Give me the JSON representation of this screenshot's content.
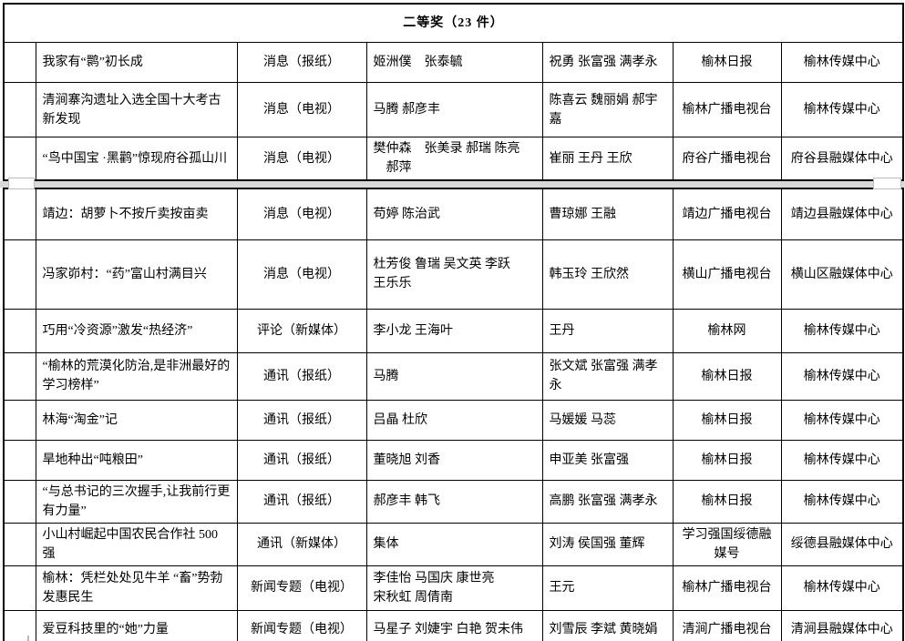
{
  "colors": {
    "border": "#000000",
    "page_break_band": "#d9d9d9",
    "background": "#ffffff"
  },
  "header": {
    "title": "二等奖（23 件）"
  },
  "tables": [
    {
      "rows": [
        {
          "index": "",
          "title": "我家有“鹮”初长成",
          "category": "消息（报纸）",
          "authors": "姬洲僕　张泰毓",
          "editors": "祝勇 张富强 满孝永",
          "organization": "榆林日报",
          "center": "榆林传媒中心"
        },
        {
          "index": "",
          "title": "清涧寨沟遗址入选全国十大考古新发现",
          "category": "消息（电视）",
          "authors": "马腾 郝彦丰",
          "editors": "陈喜云 魏丽娟 郝宇嘉",
          "organization": "榆林广播电视台",
          "center": "榆林传媒中心"
        },
        {
          "index": "",
          "title": "“鸟中国宝 ·黑鹳”惊现府谷孤山川",
          "category": "消息（电视）",
          "authors": "樊仲森　张美录 郝瑞 陈亮\n　郝萍",
          "editors": "崔丽 王丹 王欣",
          "organization": "府谷广播电视台",
          "center": "府谷县融媒体中心"
        }
      ]
    },
    {
      "rows": [
        {
          "index": "",
          "title": "靖边：胡萝卜不按斤卖按亩卖",
          "category": "消息（电视）",
          "authors": "苟婷 陈治武",
          "editors": "曹琼娜 王融",
          "organization": "靖边广播电视台",
          "center": "靖边县融媒体中心"
        },
        {
          "index": "",
          "title": "冯家峁村：“药”富山村满目兴",
          "category": "消息（电视）",
          "authors": "杜芳俊 鲁瑞 吴文英 李跃\n王乐乐",
          "editors": "韩玉玲 王欣然",
          "organization": "横山广播电视台",
          "center": "横山区融媒体中心"
        },
        {
          "index": "",
          "title": "巧用“冷资源”激发“热经济”",
          "category": "评论（新媒体）",
          "authors": "李小龙 王海叶",
          "editors": "王丹",
          "organization": "榆林网",
          "center": "榆林传媒中心"
        },
        {
          "index": "",
          "title": "“榆林的荒漠化防治,是非洲最好的学习榜样”",
          "category": "通讯（报纸）",
          "authors": "马腾",
          "editors": "张文斌 张富强 满孝永",
          "organization": "榆林日报",
          "center": "榆林传媒中心"
        },
        {
          "index": "",
          "title": "林海“淘金”记",
          "category": "通讯（报纸）",
          "authors": "吕晶 杜欣",
          "editors": "马媛媛 马蕊",
          "organization": "榆林日报",
          "center": "榆林传媒中心"
        },
        {
          "index": "",
          "title": "旱地种出“吨粮田”",
          "category": "通讯（报纸）",
          "authors": "董晓旭 刘香",
          "editors": "申亚美 张富强",
          "organization": "榆林日报",
          "center": "榆林传媒中心"
        },
        {
          "index": "",
          "title": "“与总书记的三次握手,让我前行更有力量”",
          "category": "通讯（报纸）",
          "authors": "郝彦丰 韩飞",
          "editors": "高鹏 张富强 满孝永",
          "organization": "榆林日报",
          "center": "榆林传媒中心"
        },
        {
          "index": "",
          "title": "小山村崛起中国农民合作社 500 强",
          "category": "通讯（新媒体）",
          "authors": "集体",
          "editors": "刘涛 侯国强 董辉",
          "organization": "学习强国绥德融媒号",
          "center": "绥德县融媒体中心"
        },
        {
          "index": "",
          "title": "榆林：凭栏处处见牛羊 “畜”势勃发惠民生",
          "category": "新闻专题（电视）",
          "authors": "李佳怡 马国庆 康世亮\n宋秋虹 周倩南",
          "editors": "王元",
          "organization": "榆林广播电视台",
          "center": "榆林传媒中心"
        },
        {
          "index": "",
          "title": "爱豆科技里的“她”力量",
          "category": "新闻专题（电视）",
          "authors": "马星子 刘婕宇 白艳 贺未伟",
          "editors": "刘雪辰 李斌 黄晓娟",
          "organization": "清涧广播电视台",
          "center": "清涧县融媒体中心"
        }
      ]
    }
  ]
}
